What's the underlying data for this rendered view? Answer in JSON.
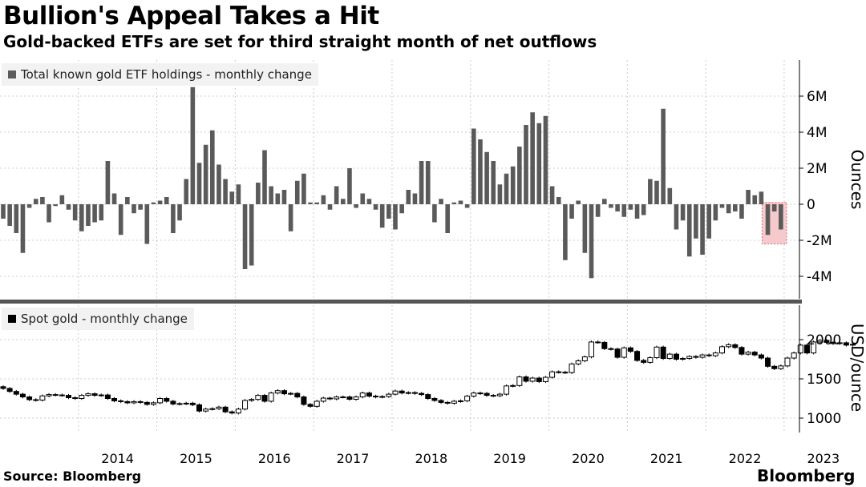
{
  "title": "Bullion's Appeal Takes a Hit",
  "subtitle": "Gold-backed ETFs are set for third straight month of net outflows",
  "source": "Source: Bloomberg",
  "logo": "Bloomberg",
  "colors": {
    "etf_bar": "#5a5a5a",
    "highlight_fill": "#f6c9cc",
    "highlight_stroke": "#e07b84",
    "candle": "#000000",
    "grid": "#cccccc",
    "divider": "#555555"
  },
  "chart_data": [
    {
      "type": "bar",
      "legend": "Total known gold ETF holdings - monthly change",
      "ylabel": "Ounces",
      "ylim": [
        -5.2,
        8
      ],
      "unit": "M",
      "y_ticks": [
        {
          "value": 6,
          "label": "6M"
        },
        {
          "value": 4,
          "label": "4M"
        },
        {
          "value": 2,
          "label": "2M"
        },
        {
          "value": 0,
          "label": "0"
        },
        {
          "value": -2,
          "label": "-2M"
        },
        {
          "value": -4,
          "label": "-4M"
        }
      ],
      "x_start": "2013-01",
      "values": [
        -0.8,
        -1.2,
        -1.6,
        -2.7,
        -0.2,
        0.3,
        0.4,
        -1.0,
        -0.1,
        0.5,
        -0.3,
        -0.9,
        -1.5,
        -1.2,
        -1.0,
        -0.9,
        2.4,
        0.6,
        -1.7,
        0.4,
        -0.5,
        -0.3,
        -2.2,
        0.1,
        0.2,
        0.4,
        -1.6,
        -0.9,
        1.4,
        6.5,
        2.3,
        3.3,
        4.1,
        2.2,
        1.4,
        0.7,
        1.1,
        -3.6,
        -3.4,
        1.2,
        3.0,
        1.0,
        0.6,
        0.8,
        -1.5,
        1.3,
        1.7,
        0.1,
        0.1,
        0.5,
        -0.3,
        1.0,
        0.3,
        2.0,
        -0.2,
        0.6,
        0.3,
        -0.3,
        -1.3,
        -0.8,
        -1.4,
        -0.5,
        0.8,
        0.6,
        2.4,
        2.4,
        -1.0,
        0.3,
        -1.6,
        0.1,
        0.2,
        -0.2,
        4.2,
        3.6,
        2.9,
        2.4,
        1.1,
        1.7,
        2.1,
        3.2,
        4.4,
        5.1,
        4.5,
        4.9,
        1.0,
        0.4,
        -3.1,
        -0.8,
        0.2,
        -2.7,
        -4.1,
        -0.7,
        0.3,
        -0.2,
        -0.4,
        -0.7,
        -0.3,
        -0.8,
        -0.6,
        1.4,
        1.3,
        5.3,
        0.9,
        -1.4,
        -0.9,
        -2.9,
        -1.9,
        -2.8,
        -1.9,
        -0.9,
        -0.2,
        -0.5,
        -0.4,
        -0.8,
        0.8,
        0.5,
        0.7,
        -1.7,
        -0.4,
        -1.4
      ],
      "highlight_last": 3
    },
    {
      "type": "candlestick",
      "legend": "Spot gold - monthly change",
      "ylabel": "USD/ounce",
      "ylim": [
        950,
        2250
      ],
      "y_ticks": [
        {
          "value": 2000,
          "label": "2000"
        },
        {
          "value": 1500,
          "label": "1500"
        },
        {
          "value": 1000,
          "label": "1000"
        }
      ],
      "x_start": "2013-01",
      "close": [
        1378,
        1340,
        1305,
        1270,
        1235,
        1230,
        1283,
        1300,
        1295,
        1290,
        1260,
        1250,
        1290,
        1310,
        1290,
        1295,
        1250,
        1220,
        1210,
        1195,
        1210,
        1200,
        1175,
        1195,
        1250,
        1215,
        1180,
        1185,
        1190,
        1170,
        1090,
        1115,
        1120,
        1140,
        1080,
        1065,
        1115,
        1225,
        1238,
        1290,
        1215,
        1320,
        1350,
        1310,
        1315,
        1270,
        1175,
        1150,
        1215,
        1255,
        1245,
        1270,
        1270,
        1240,
        1270,
        1320,
        1280,
        1270,
        1275,
        1305,
        1345,
        1320,
        1325,
        1315,
        1300,
        1250,
        1225,
        1200,
        1190,
        1215,
        1220,
        1280,
        1320,
        1315,
        1290,
        1285,
        1305,
        1410,
        1415,
        1525,
        1470,
        1510,
        1465,
        1520,
        1590,
        1585,
        1580,
        1690,
        1730,
        1780,
        1970,
        1965,
        1885,
        1880,
        1775,
        1895,
        1850,
        1735,
        1710,
        1770,
        1905,
        1760,
        1815,
        1750,
        1760,
        1785,
        1775,
        1805,
        1795,
        1830,
        1910,
        1935,
        1900,
        1815,
        1840,
        1805,
        1765,
        1660,
        1630,
        1665,
        1765,
        1830,
        1930,
        1830,
        1970,
        1990,
        1965,
        1950,
        1960,
        1930,
        1940
      ],
      "x_labels": [
        "2014",
        "2015",
        "2016",
        "2017",
        "2018",
        "2019",
        "2020",
        "2021",
        "2022",
        "2023"
      ]
    }
  ]
}
